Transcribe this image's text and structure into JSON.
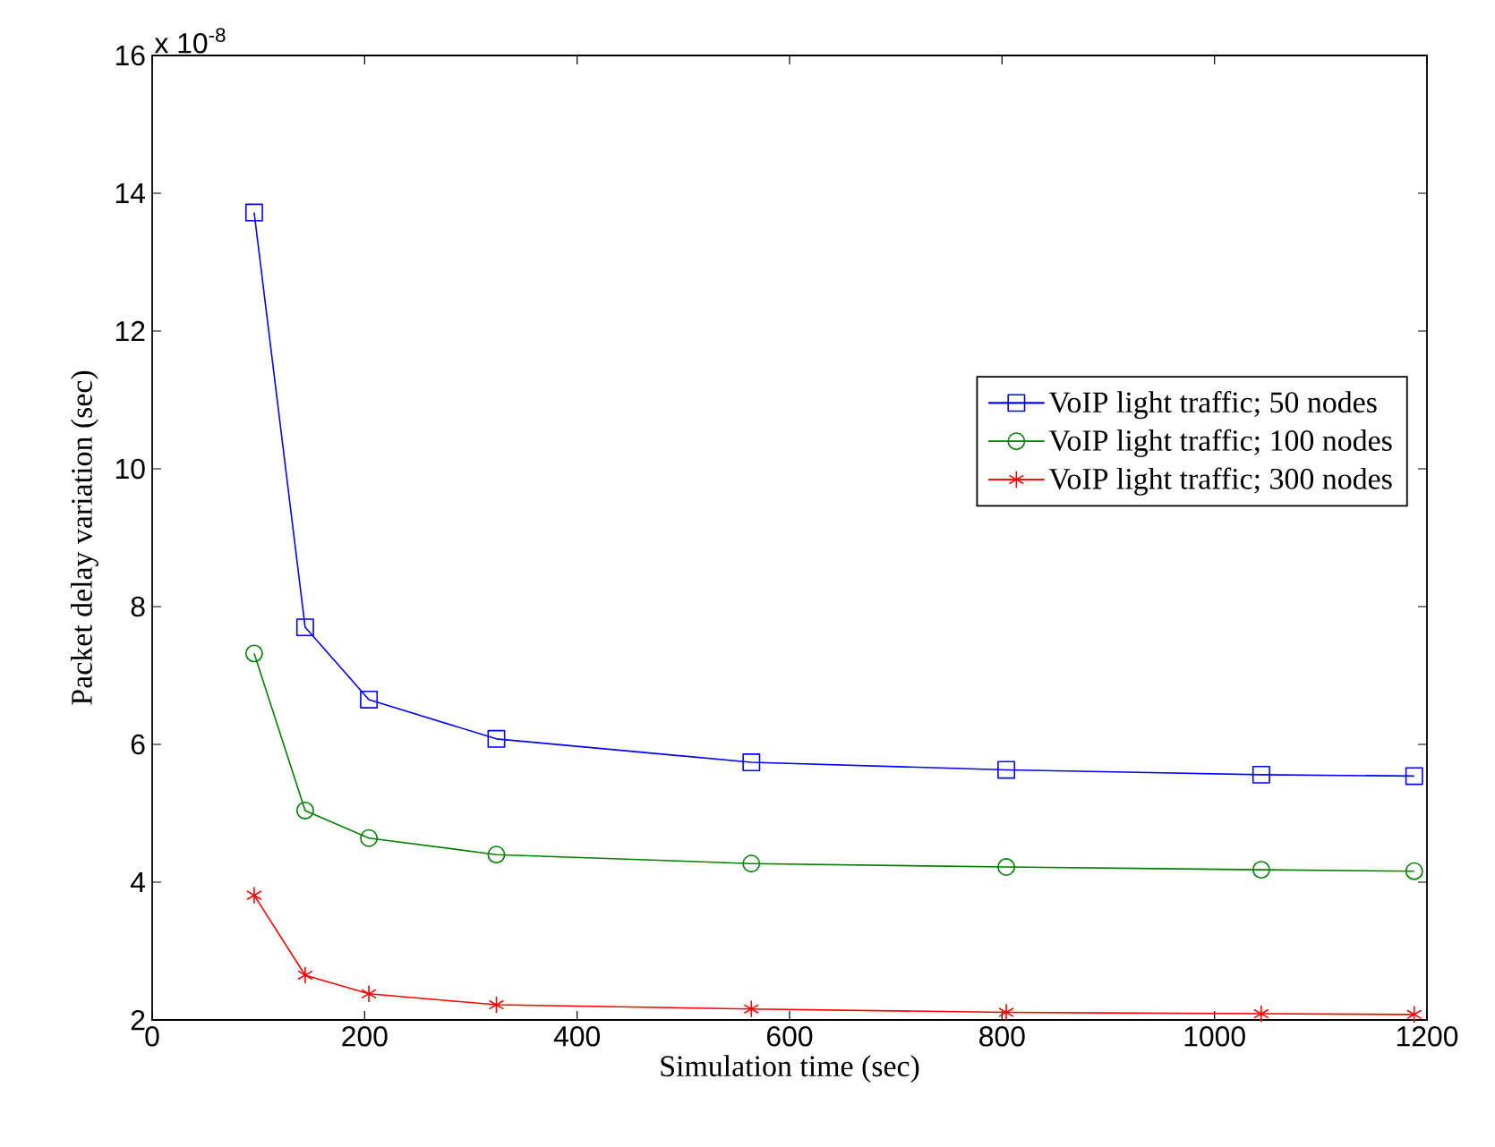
{
  "chart_data": {
    "type": "line",
    "xlabel": "Simulation time (sec)",
    "ylabel": "Packet delay variation (sec)",
    "annotations": [
      "x 10$^{-8}$"
    ],
    "x": [
      96,
      144,
      204,
      324,
      564,
      804,
      1044,
      1188
    ],
    "series": [
      {
        "name": "VoIP light traffic; 50 nodes",
        "color": "#0000ff",
        "marker": "square",
        "values": [
          13.72,
          7.7,
          6.65,
          6.08,
          5.74,
          5.63,
          5.56,
          5.54
        ]
      },
      {
        "name": "VoIP light traffic; 100 nodes",
        "color": "#008000",
        "marker": "circle",
        "values": [
          7.32,
          5.04,
          4.64,
          4.4,
          4.27,
          4.22,
          4.18,
          4.16
        ]
      },
      {
        "name": "VoIP light traffic; 300 nodes",
        "color": "#ff0000",
        "marker": "cross",
        "values": [
          3.81,
          2.65,
          2.38,
          2.22,
          2.16,
          2.11,
          2.09,
          2.08
        ]
      }
    ],
    "xlim": [
      0,
      1200
    ],
    "xticks": [
      0,
      200,
      400,
      600,
      800,
      1000,
      1200
    ],
    "ylim": [
      2,
      16
    ],
    "yticks": [
      2,
      4,
      6,
      8,
      10,
      12,
      14,
      16
    ],
    "grid": false,
    "legend": "right",
    "line_style": "solid"
  }
}
